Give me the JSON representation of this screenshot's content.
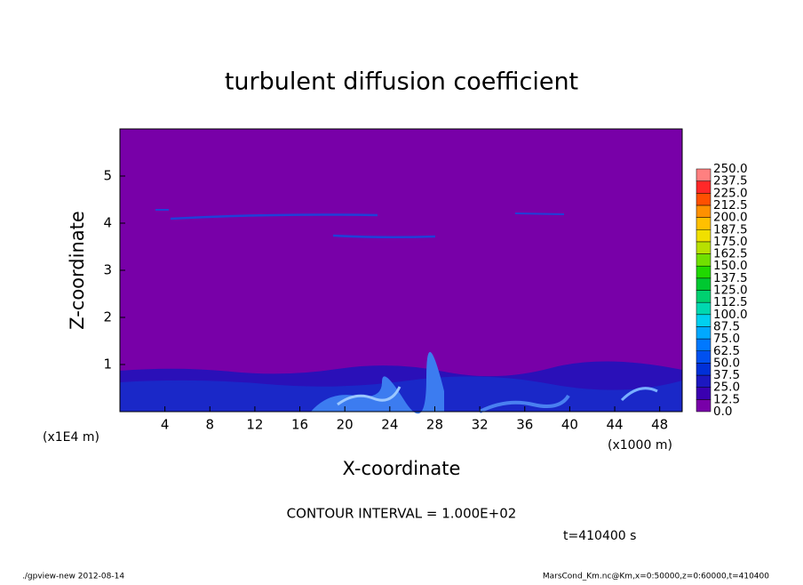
{
  "chart_data": {
    "type": "contour",
    "title": "turbulent diffusion coefficient",
    "x_label": "X-coordinate",
    "y_label": "Z-coordinate",
    "x_unit": "(x1000 m)",
    "y_unit": "(x1E4 m)",
    "xlim": [
      0,
      50
    ],
    "xticks": [
      4,
      8,
      12,
      16,
      20,
      24,
      28,
      32,
      36,
      40,
      44,
      48
    ],
    "ylim": [
      0,
      6
    ],
    "yticks": [
      1,
      2,
      3,
      4,
      5
    ],
    "contour_interval": "CONTOUR INTERVAL = 1.000E+02",
    "time_label": "t=410400 s",
    "footer_left": "./gpview-new   2012-08-14",
    "footer_right": "MarsCond_Km.nc@Km,x=0:50000,z=0:60000,t=410400",
    "colorbar": {
      "levels": [
        {
          "value": 0,
          "label": "0.0"
        },
        12.5,
        {
          "value": 25,
          "label": "25.0"
        },
        37.5,
        {
          "value": 50,
          "label": "50.0"
        },
        62.5,
        {
          "value": 75,
          "label": "75.0"
        },
        87.5,
        {
          "value": 100,
          "label": "100.0"
        },
        112.5,
        {
          "value": 125,
          "label": "125.0"
        },
        137.5,
        {
          "value": 150,
          "label": "150.0"
        },
        162.5,
        {
          "value": 175,
          "label": "175.0"
        },
        187.5,
        {
          "value": 200,
          "label": "200.0"
        },
        212.5,
        {
          "value": 225,
          "label": "225.0"
        },
        237.5,
        {
          "value": 250,
          "label": "250.0"
        }
      ],
      "colors": [
        "#7800a8",
        "#3a00b0",
        "#1c18c0",
        "#0030d8",
        "#0050f0",
        "#0078ff",
        "#00a8ff",
        "#00d0f0",
        "#00d8b0",
        "#00d070",
        "#00c830",
        "#20d800",
        "#70e000",
        "#b8e000",
        "#f0e000",
        "#ffc000",
        "#ff9000",
        "#ff5000",
        "#ff2828",
        "#ff8080"
      ]
    }
  }
}
